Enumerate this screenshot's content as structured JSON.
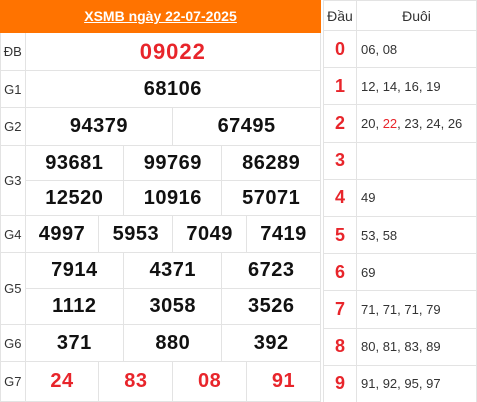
{
  "title": {
    "prefix": "XSMB ngày ",
    "date": "22-07-2025"
  },
  "prizes": {
    "db": {
      "label": "ĐB",
      "numbers": [
        "09022"
      ]
    },
    "g1": {
      "label": "G1",
      "numbers": [
        "68106"
      ]
    },
    "g2": {
      "label": "G2",
      "numbers": [
        "94379",
        "67495"
      ]
    },
    "g3": {
      "label": "G3",
      "numbers": [
        "93681",
        "99769",
        "86289",
        "12520",
        "10916",
        "57071"
      ]
    },
    "g4": {
      "label": "G4",
      "numbers": [
        "4997",
        "5953",
        "7049",
        "7419"
      ]
    },
    "g5": {
      "label": "G5",
      "numbers": [
        "7914",
        "4371",
        "6723",
        "1112",
        "3058",
        "3526"
      ]
    },
    "g6": {
      "label": "G6",
      "numbers": [
        "371",
        "880",
        "392"
      ]
    },
    "g7": {
      "label": "G7",
      "numbers": [
        "24",
        "83",
        "08",
        "91"
      ]
    }
  },
  "loto": {
    "head_label": "Đầu",
    "tail_label": "Đuôi",
    "rows": [
      {
        "head": "0",
        "tails": [
          "06",
          "08"
        ]
      },
      {
        "head": "1",
        "tails": [
          "12",
          "14",
          "16",
          "19"
        ]
      },
      {
        "head": "2",
        "tails": [
          "20",
          "22",
          "23",
          "24",
          "26"
        ],
        "highlight": "22"
      },
      {
        "head": "3",
        "tails": []
      },
      {
        "head": "4",
        "tails": [
          "49"
        ]
      },
      {
        "head": "5",
        "tails": [
          "53",
          "58"
        ]
      },
      {
        "head": "6",
        "tails": [
          "69"
        ]
      },
      {
        "head": "7",
        "tails": [
          "71",
          "71",
          "71",
          "79"
        ]
      },
      {
        "head": "8",
        "tails": [
          "80",
          "81",
          "83",
          "89"
        ]
      },
      {
        "head": "9",
        "tails": [
          "91",
          "92",
          "95",
          "97"
        ]
      }
    ]
  },
  "colors": {
    "header_bg": "#ff7300",
    "accent_red": "#e8252b",
    "border": "#e3e3e3"
  }
}
